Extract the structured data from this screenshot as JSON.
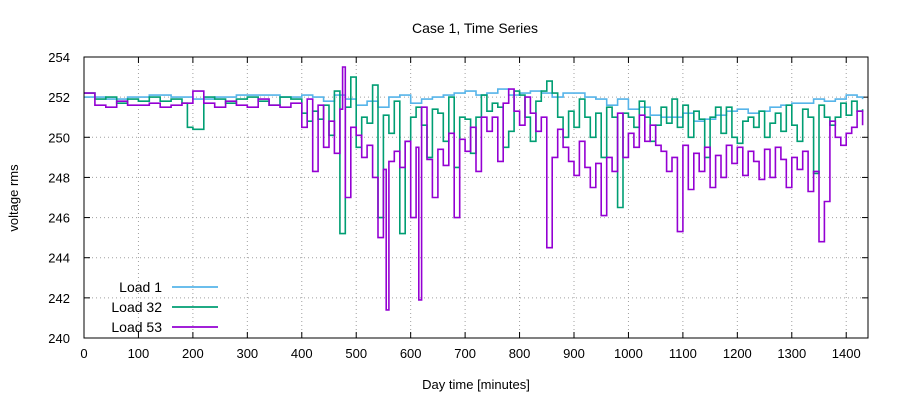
{
  "chart_data": {
    "type": "line",
    "title": "Case 1, Time Series",
    "xlabel": "Day time [minutes]",
    "ylabel": "voltage rms",
    "xlim": [
      0,
      1440
    ],
    "ylim": [
      240,
      254
    ],
    "xticks": [
      0,
      100,
      200,
      300,
      400,
      500,
      600,
      700,
      800,
      900,
      1000,
      1100,
      1200,
      1300,
      1400
    ],
    "yticks": [
      240,
      242,
      244,
      246,
      248,
      250,
      252,
      254
    ],
    "xtick_labels": [
      "0",
      "100",
      "200",
      "300",
      "400",
      "500",
      "600",
      "700",
      "800",
      "900",
      "1000",
      "1100",
      "1200",
      "1300",
      "1400"
    ],
    "ytick_labels": [
      "240",
      "242",
      "244",
      "246",
      "248",
      "250",
      "252",
      "254"
    ],
    "grid": true,
    "legend_position": "bottom-left",
    "series": [
      {
        "name": "Load 1",
        "color": "#56b4e9",
        "x": [
          0,
          40,
          80,
          120,
          160,
          200,
          240,
          280,
          320,
          360,
          400,
          420,
          440,
          460,
          480,
          500,
          520,
          540,
          560,
          580,
          600,
          620,
          640,
          660,
          680,
          700,
          720,
          740,
          760,
          780,
          800,
          820,
          840,
          860,
          880,
          900,
          920,
          940,
          960,
          980,
          1000,
          1020,
          1040,
          1060,
          1080,
          1100,
          1120,
          1140,
          1160,
          1180,
          1200,
          1220,
          1240,
          1260,
          1280,
          1300,
          1320,
          1340,
          1360,
          1380,
          1400,
          1420,
          1430
        ],
        "y": [
          252.0,
          251.9,
          252.0,
          252.1,
          252.0,
          251.9,
          252.0,
          252.1,
          252.1,
          252.0,
          252.1,
          252.0,
          251.8,
          252.1,
          251.9,
          251.6,
          251.8,
          251.5,
          252.0,
          252.1,
          251.7,
          251.9,
          252.0,
          252.1,
          252.2,
          252.3,
          252.1,
          252.2,
          252.4,
          252.1,
          252.2,
          252.3,
          252.2,
          252.0,
          252.2,
          252.2,
          252.0,
          251.9,
          251.6,
          251.9,
          251.4,
          251.5,
          251.1,
          251.0,
          251.0,
          251.2,
          250.8,
          250.9,
          251.1,
          251.3,
          251.4,
          251.2,
          251.3,
          251.5,
          251.6,
          251.7,
          251.7,
          251.9,
          251.8,
          251.9,
          252.1,
          252.0,
          251.9
        ]
      },
      {
        "name": "Load 32",
        "color": "#009e73",
        "x": [
          0,
          20,
          40,
          60,
          80,
          100,
          120,
          140,
          160,
          180,
          190,
          200,
          220,
          240,
          260,
          280,
          300,
          320,
          340,
          360,
          380,
          400,
          410,
          420,
          430,
          440,
          450,
          460,
          470,
          480,
          490,
          500,
          510,
          520,
          530,
          540,
          550,
          560,
          570,
          580,
          590,
          600,
          610,
          620,
          630,
          640,
          650,
          660,
          670,
          680,
          690,
          700,
          710,
          720,
          730,
          740,
          750,
          760,
          770,
          780,
          790,
          800,
          810,
          820,
          830,
          840,
          850,
          860,
          870,
          880,
          890,
          900,
          910,
          920,
          930,
          940,
          950,
          960,
          970,
          980,
          990,
          1000,
          1010,
          1020,
          1030,
          1040,
          1050,
          1060,
          1070,
          1080,
          1090,
          1100,
          1110,
          1120,
          1130,
          1140,
          1150,
          1160,
          1170,
          1180,
          1190,
          1200,
          1210,
          1220,
          1230,
          1240,
          1250,
          1260,
          1270,
          1280,
          1290,
          1300,
          1310,
          1320,
          1330,
          1340,
          1350,
          1360,
          1370,
          1380,
          1390,
          1400,
          1410,
          1420,
          1430
        ],
        "y": [
          252.2,
          251.9,
          252.0,
          251.7,
          251.9,
          251.8,
          252.0,
          251.8,
          251.9,
          251.7,
          250.5,
          250.4,
          252.0,
          251.9,
          251.7,
          251.9,
          252.0,
          251.8,
          251.6,
          252.0,
          251.9,
          251.2,
          250.8,
          251.3,
          250.9,
          251.6,
          250.1,
          252.3,
          245.2,
          251.5,
          253.0,
          249.5,
          251.0,
          250.7,
          252.6,
          246.0,
          251.1,
          250.2,
          251.8,
          245.2,
          249.8,
          251.0,
          251.5,
          250.6,
          249.0,
          251.4,
          251.2,
          249.8,
          252.0,
          248.5,
          251.0,
          250.9,
          249.2,
          251.0,
          252.1,
          251.3,
          251.7,
          251.5,
          249.5,
          250.3,
          252.3,
          252.1,
          251.0,
          249.8,
          251.8,
          252.3,
          252.8,
          252.2,
          251.0,
          250.0,
          251.3,
          250.5,
          251.9,
          251.0,
          250.0,
          251.2,
          249.0,
          251.5,
          251.0,
          246.5,
          251.2,
          251.0,
          250.5,
          251.8,
          251.0,
          249.8,
          250.6,
          251.5,
          250.7,
          251.9,
          250.5,
          251.6,
          250.0,
          251.3,
          250.9,
          249.0,
          251.0,
          251.5,
          250.2,
          251.5,
          250.0,
          249.7,
          250.8,
          251.0,
          250.5,
          251.3,
          250.0,
          250.7,
          251.2,
          250.3,
          251.6,
          250.6,
          249.8,
          251.4,
          251.0,
          248.2,
          251.6,
          251.0,
          250.6,
          251.0,
          251.7,
          251.1,
          251.8,
          251.3,
          251.4
        ]
      },
      {
        "name": "Load 53",
        "color": "#9400d3",
        "x": [
          0,
          20,
          40,
          60,
          80,
          100,
          120,
          140,
          160,
          180,
          200,
          220,
          240,
          260,
          280,
          300,
          320,
          340,
          360,
          380,
          400,
          410,
          420,
          430,
          440,
          450,
          460,
          470,
          475,
          480,
          490,
          500,
          510,
          520,
          530,
          540,
          550,
          555,
          560,
          570,
          580,
          590,
          600,
          610,
          615,
          620,
          630,
          640,
          650,
          660,
          670,
          680,
          690,
          700,
          710,
          720,
          730,
          740,
          750,
          760,
          770,
          780,
          790,
          800,
          810,
          820,
          830,
          840,
          850,
          860,
          870,
          880,
          890,
          900,
          910,
          920,
          930,
          940,
          950,
          960,
          970,
          980,
          990,
          1000,
          1010,
          1020,
          1030,
          1040,
          1050,
          1060,
          1070,
          1080,
          1090,
          1100,
          1110,
          1120,
          1130,
          1140,
          1150,
          1160,
          1170,
          1180,
          1190,
          1200,
          1210,
          1220,
          1230,
          1240,
          1250,
          1260,
          1270,
          1280,
          1290,
          1300,
          1310,
          1320,
          1330,
          1340,
          1350,
          1360,
          1370,
          1380,
          1390,
          1400,
          1410,
          1420,
          1430
        ],
        "y": [
          252.2,
          251.6,
          251.5,
          251.8,
          251.6,
          251.6,
          251.7,
          251.5,
          251.6,
          251.7,
          252.3,
          251.7,
          251.5,
          251.8,
          251.6,
          251.5,
          251.9,
          251.6,
          251.5,
          251.7,
          250.5,
          251.9,
          248.3,
          251.6,
          249.5,
          250.8,
          249.2,
          251.4,
          253.5,
          247.0,
          250.5,
          250.1,
          249.0,
          249.6,
          248.0,
          245.0,
          248.4,
          241.4,
          248.8,
          249.3,
          248.5,
          249.8,
          246.0,
          249.5,
          241.9,
          251.5,
          248.9,
          247.0,
          249.4,
          248.6,
          250.2,
          246.0,
          249.9,
          249.3,
          250.5,
          248.3,
          251.0,
          250.3,
          251.0,
          248.8,
          251.7,
          252.4,
          251.3,
          250.6,
          252.0,
          251.2,
          250.3,
          251.0,
          244.5,
          249.0,
          250.4,
          249.5,
          248.8,
          248.1,
          249.8,
          248.5,
          247.5,
          248.7,
          246.1,
          249.0,
          248.3,
          251.2,
          249.0,
          250.2,
          249.5,
          251.1,
          249.8,
          250.6,
          249.6,
          249.3,
          248.3,
          249.0,
          245.3,
          249.6,
          247.4,
          249.2,
          248.3,
          249.5,
          247.5,
          249.1,
          248.0,
          249.6,
          248.7,
          249.5,
          248.1,
          249.3,
          248.8,
          247.9,
          249.4,
          248.0,
          249.5,
          248.9,
          247.5,
          249.0,
          248.4,
          249.3,
          247.3,
          248.3,
          244.8,
          246.8,
          250.8,
          250.0,
          249.6,
          250.2,
          250.5,
          251.3,
          250.6
        ]
      }
    ]
  }
}
